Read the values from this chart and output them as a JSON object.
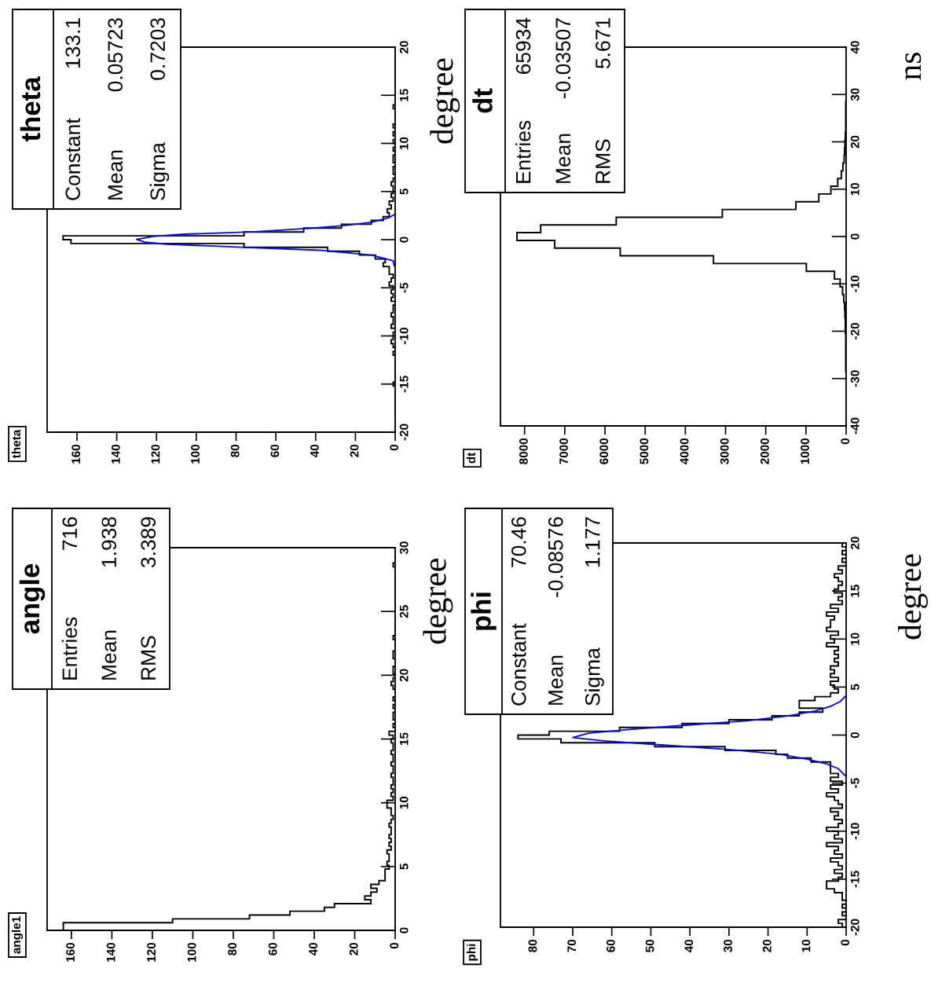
{
  "chart_data": [
    {
      "type": "histogram",
      "orientation": "horizontal",
      "title": "theta",
      "ylabel": "degree",
      "color": "#000000",
      "bins": [
        -20,
        -19.6,
        -19.2,
        -18.8,
        -18.4,
        -18,
        -17.6,
        -17.2,
        -16.8,
        -16.4,
        -16,
        -15.6,
        -15.2,
        -14.8,
        -14.4,
        -14,
        -13.6,
        -13.2,
        -12.8,
        -12.4,
        -12,
        -11.6,
        -11.2,
        -10.8,
        -10.4,
        -10,
        -9.6,
        -9.2,
        -8.8,
        -8.4,
        -8,
        -7.6,
        -7.2,
        -6.8,
        -6.4,
        -6,
        -5.6,
        -5.2,
        -4.8,
        -4.4,
        -4,
        -3.6,
        -3.2,
        -2.8,
        -2.4,
        -2,
        -1.6,
        -1.2,
        -0.8,
        -0.4,
        0,
        0.4,
        0.8,
        1.2,
        1.6,
        2,
        2.4,
        2.8,
        3.2,
        3.6,
        4,
        4.4,
        4.8,
        5.2,
        5.6,
        6,
        6.4,
        6.8,
        7.2,
        7.6,
        8,
        8.4,
        8.8,
        9.2,
        9.6,
        10,
        10.4,
        10.8,
        11.2,
        11.6,
        12,
        12.4,
        12.8,
        13.2,
        13.6,
        14,
        14.4,
        14.8,
        15.2,
        15.6,
        16,
        16.4,
        16.8,
        17.2,
        17.6,
        18,
        18.4,
        18.8,
        19.2,
        19.6,
        20
      ],
      "values": [
        0,
        0,
        0,
        0,
        0,
        0,
        0,
        0,
        0,
        0,
        0,
        0,
        1,
        0,
        0,
        0,
        0,
        0,
        0,
        0,
        1,
        0,
        1,
        2,
        1,
        1,
        0,
        2,
        1,
        1,
        2,
        1,
        1,
        0,
        2,
        1,
        2,
        1,
        3,
        2,
        1,
        3,
        3,
        6,
        5,
        10,
        18,
        34,
        76,
        163,
        167,
        76,
        46,
        27,
        12,
        6,
        3,
        4,
        2,
        3,
        1,
        2,
        1,
        1,
        2,
        1,
        0,
        1,
        1,
        0,
        1,
        1,
        0,
        1,
        0,
        1,
        0,
        1,
        0,
        1,
        0,
        0,
        0,
        0,
        1,
        0,
        0,
        0,
        0,
        0,
        0,
        0,
        0,
        0,
        0,
        0,
        0,
        0,
        0,
        0
      ],
      "series": [
        {
          "type": "line",
          "color": "#0000ff",
          "x": [
            -2.7,
            -2.2,
            -1.6,
            -1.1,
            -0.8,
            -0.47,
            -0.25,
            0.03,
            0.35,
            0.57,
            0.83,
            1.15,
            1.46,
            1.8,
            2.3,
            2.6
          ],
          "values": [
            0.5,
            1,
            12,
            38,
            75,
            115,
            126,
            130,
            121,
            106,
            70,
            45,
            26,
            12,
            3,
            0.5
          ]
        }
      ],
      "xlim": [
        175,
        0
      ],
      "xticks": [
        0,
        20,
        40,
        60,
        80,
        100,
        120,
        140,
        160
      ],
      "ylim": [
        -20,
        20
      ],
      "yticks": [
        -20,
        -15,
        -10,
        -5,
        0,
        5,
        10,
        15,
        20
      ],
      "annotations": [
        "theta",
        "Constant",
        "133.1",
        "Mean",
        "0.05723",
        "Sigma",
        "0.7203"
      ]
    },
    {
      "type": "histogram",
      "orientation": "horizontal",
      "title": "dt",
      "ylabel": "ns",
      "color": "#000000",
      "bins": [
        -40,
        -38.37,
        -36.73,
        -35.1,
        -33.47,
        -31.84,
        -30.2,
        -28.57,
        -26.94,
        -25.31,
        -23.67,
        -22.04,
        -20.41,
        -18.78,
        -17.14,
        -15.51,
        -13.88,
        -12.24,
        -10.61,
        -8.98,
        -7.35,
        -5.71,
        -4.08,
        -2.45,
        -0.82,
        0.82,
        2.45,
        4.08,
        5.71,
        7.35,
        8.98,
        10.61,
        12.24,
        13.88,
        15.51,
        17.14,
        18.78,
        20.41,
        22.04,
        23.67,
        25.31,
        26.94,
        28.57,
        30.2,
        31.84,
        33.47,
        35.1,
        36.73,
        38.37,
        40
      ],
      "values": [
        0,
        0,
        0,
        0,
        0,
        0,
        0,
        10,
        10,
        10,
        10,
        10,
        20,
        20,
        30,
        40,
        60,
        90,
        150,
        290,
        990,
        3300,
        5620,
        7250,
        8190,
        7600,
        5720,
        3080,
        1250,
        680,
        380,
        210,
        120,
        80,
        50,
        40,
        30,
        20,
        10,
        10,
        10,
        10,
        0,
        0,
        0,
        0,
        0,
        0,
        0
      ],
      "xlim": [
        8600,
        0
      ],
      "xticks": [
        0,
        1000,
        2000,
        3000,
        4000,
        5000,
        6000,
        7000,
        8000
      ],
      "ylim": [
        -40,
        40
      ],
      "yticks": [
        -40,
        -30,
        -20,
        -10,
        0,
        10,
        20,
        30,
        40
      ],
      "annotations": [
        "dt",
        "Entries",
        "65934",
        "Mean",
        "-0.03507",
        "RMS",
        "5.671"
      ]
    },
    {
      "type": "histogram",
      "orientation": "horizontal",
      "title": "angle1",
      "ylabel": "degree",
      "color": "#000000",
      "bins": [
        0,
        0.3,
        0.6,
        0.9,
        1.2,
        1.5,
        1.8,
        2.1,
        2.4,
        2.7,
        3,
        3.3,
        3.6,
        3.9,
        4.2,
        4.5,
        4.8,
        5.1,
        5.4,
        5.7,
        6,
        6.3,
        6.6,
        6.9,
        7.2,
        7.5,
        7.8,
        8.1,
        8.4,
        8.7,
        9,
        9.3,
        9.6,
        9.9,
        10.2,
        10.5,
        10.8,
        11.1,
        11.4,
        11.7,
        12,
        12.3,
        12.6,
        12.9,
        13.2,
        13.5,
        13.8,
        14.1,
        14.4,
        14.7,
        15,
        15.3,
        15.6,
        15.9,
        16.2,
        16.5,
        16.8,
        17.1,
        17.4,
        17.7,
        18,
        18.3,
        18.6,
        18.9,
        19.2,
        19.5,
        19.8,
        20.1,
        20.4,
        20.7,
        21,
        21.3,
        21.6,
        21.9,
        22.2,
        22.5,
        22.8,
        23.1,
        23.4,
        23.7,
        24,
        24.3,
        24.6,
        24.9,
        25.2,
        25.5,
        25.8,
        26.1,
        26.4,
        26.7,
        27,
        27.3,
        27.6,
        27.9,
        28.2,
        28.5,
        28.8,
        29.1,
        29.4,
        29.7,
        30
      ],
      "values": [
        164,
        164,
        110,
        72,
        52,
        35,
        30,
        12,
        15,
        12,
        9,
        12,
        8,
        5,
        5,
        5,
        3,
        4,
        3,
        3,
        4,
        2,
        3,
        2,
        3,
        2,
        2,
        3,
        2,
        1,
        2,
        2,
        4,
        4,
        1,
        2,
        1,
        2,
        1,
        1,
        2,
        1,
        1,
        2,
        1,
        1,
        2,
        1,
        1,
        2,
        1,
        3,
        0,
        1,
        0,
        1,
        1,
        0,
        1,
        0,
        1,
        0,
        0,
        1,
        2,
        1,
        0,
        1,
        1,
        0,
        0,
        1,
        1,
        0,
        0,
        0,
        1,
        0,
        0,
        0,
        0,
        0,
        0,
        0,
        0,
        0,
        0,
        0,
        0,
        0,
        0,
        0,
        0,
        0,
        0,
        1,
        0,
        0,
        0,
        0
      ],
      "xlim": [
        172,
        0
      ],
      "xticks": [
        0,
        20,
        40,
        60,
        80,
        100,
        120,
        140,
        160
      ],
      "ylim": [
        0,
        30
      ],
      "yticks": [
        0,
        5,
        10,
        15,
        20,
        25,
        30
      ],
      "annotations": [
        "angle",
        "Entries",
        "716",
        "Mean",
        "1.938",
        "RMS",
        "3.389"
      ]
    },
    {
      "type": "histogram",
      "orientation": "horizontal",
      "title": "phi",
      "ylabel": "degree",
      "color": "#000000",
      "bins": [
        -20,
        -19.6,
        -19.2,
        -18.8,
        -18.4,
        -18,
        -17.6,
        -17.2,
        -16.8,
        -16.4,
        -16,
        -15.6,
        -15.2,
        -14.8,
        -14.4,
        -14,
        -13.6,
        -13.2,
        -12.8,
        -12.4,
        -12,
        -11.6,
        -11.2,
        -10.8,
        -10.4,
        -10,
        -9.6,
        -9.2,
        -8.8,
        -8.4,
        -8,
        -7.6,
        -7.2,
        -6.8,
        -6.4,
        -6,
        -5.6,
        -5.2,
        -4.8,
        -4.4,
        -4,
        -3.6,
        -3.2,
        -2.8,
        -2.4,
        -2,
        -1.6,
        -1.2,
        -0.8,
        -0.4,
        0,
        0.4,
        0.8,
        1.2,
        1.6,
        2,
        2.4,
        2.8,
        3.2,
        3.6,
        4,
        4.4,
        4.8,
        5.2,
        5.6,
        6,
        6.4,
        6.8,
        7.2,
        7.6,
        8,
        8.4,
        8.8,
        9.2,
        9.6,
        10,
        10.4,
        10.8,
        11.2,
        11.6,
        12,
        12.4,
        12.8,
        13.2,
        13.6,
        14,
        14.4,
        14.8,
        15.2,
        15.6,
        16,
        16.4,
        16.8,
        17.2,
        17.6,
        18,
        18.4,
        18.8,
        19.2,
        19.6,
        20
      ],
      "values": [
        1,
        2,
        0,
        1,
        0,
        1,
        0,
        1,
        1,
        3,
        5,
        5,
        2,
        1,
        3,
        1,
        2,
        4,
        1,
        3,
        2,
        5,
        1,
        3,
        2,
        5,
        2,
        1,
        3,
        2,
        4,
        1,
        2,
        3,
        5,
        2,
        4,
        1,
        4,
        2,
        4,
        4,
        4,
        9,
        15,
        18,
        31,
        49,
        73,
        84,
        76,
        58,
        42,
        30,
        19,
        12,
        6,
        12,
        12,
        8,
        4,
        2,
        3,
        4,
        2,
        4,
        3,
        4,
        2,
        3,
        2,
        3,
        2,
        5,
        3,
        4,
        2,
        5,
        4,
        4,
        3,
        5,
        2,
        4,
        1,
        2,
        1,
        3,
        2,
        1,
        2,
        3,
        1,
        2,
        0,
        1,
        0,
        1,
        0,
        1
      ],
      "series": [
        {
          "type": "line",
          "color": "#0000ff",
          "x": [
            -4.2,
            -3.5,
            -3,
            -2.5,
            -2,
            -1.5,
            -1,
            -0.6,
            -0.25,
            0.2,
            0.6,
            1,
            1.5,
            2,
            2.5,
            3,
            3.5,
            4
          ],
          "values": [
            0.3,
            2,
            5,
            10,
            17,
            30,
            48,
            62,
            70,
            66,
            55,
            42,
            25,
            15,
            8,
            4,
            1.5,
            0.3
          ]
        }
      ],
      "xlim": [
        88.5,
        0
      ],
      "xticks": [
        0,
        10,
        20,
        30,
        40,
        50,
        60,
        70,
        80
      ],
      "ylim": [
        -20,
        20
      ],
      "yticks": [
        -20,
        -15,
        -10,
        -5,
        0,
        5,
        10,
        15,
        20
      ],
      "annotations": [
        "phi",
        "Constant",
        "70.46",
        "Mean",
        "-0.08576",
        "Sigma",
        "1.177"
      ]
    }
  ]
}
